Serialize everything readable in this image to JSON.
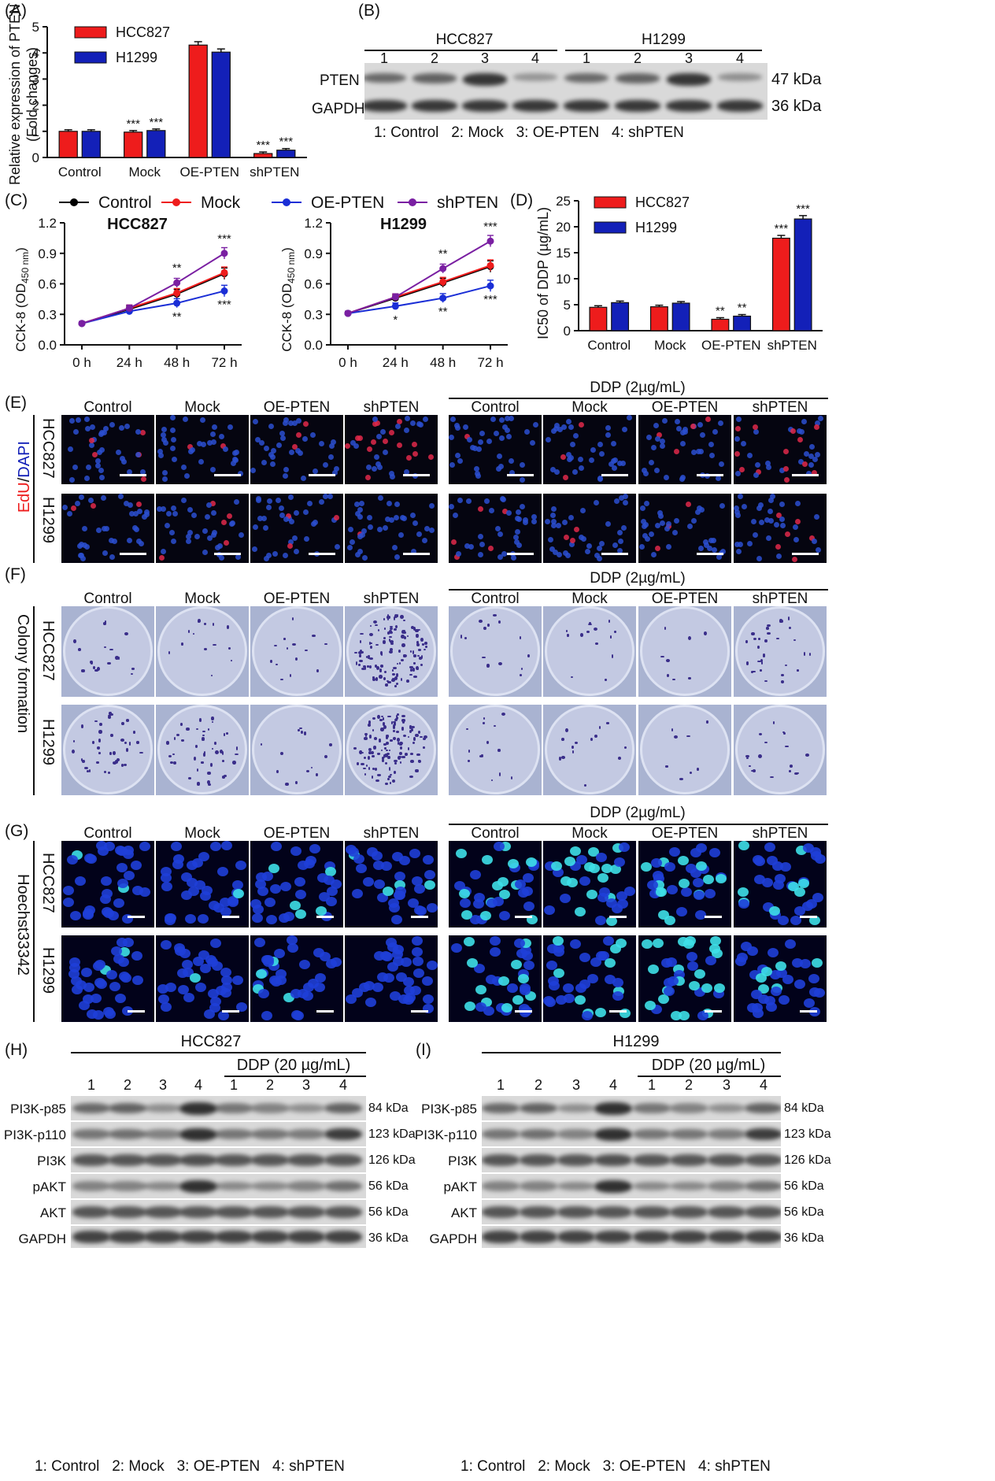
{
  "panels": {
    "A": "(A)",
    "B": "(B)",
    "C": "(C)",
    "D": "(D)",
    "E": "(E)",
    "F": "(F)",
    "G": "(G)",
    "H": "(H)",
    "I": "(I)"
  },
  "groups": [
    "Control",
    "Mock",
    "OE-PTEN",
    "shPTEN"
  ],
  "lines": [
    "HCC827",
    "H1299"
  ],
  "ddp_2": "DDP (2µg/mL)",
  "ddp_20": "DDP (20 µg/mL)",
  "lane_legend": [
    "1: Control",
    "2: Mock",
    "3: OE-PTEN",
    "4: shPTEN"
  ],
  "lane_numbers": [
    "1",
    "2",
    "3",
    "4"
  ],
  "colors": {
    "hcc827": "#ee1c1c",
    "h1299": "#1320b8",
    "control": "#000000",
    "mock": "#ee1c1c",
    "oe": "#1a2ed6",
    "sh": "#7a1fa2"
  },
  "panel_e_label": {
    "edu": "EdU",
    "slash": "/",
    "dapi": "DAPI"
  },
  "panel_f_label": "Colony formation",
  "panel_g_label": "Hoechst33342",
  "panel_b": {
    "proteins": [
      "PTEN",
      "GAPDH"
    ],
    "sizes": [
      "47 kDa",
      "36 kDa"
    ]
  },
  "panel_h": {
    "title": "HCC827",
    "proteins": [
      "PI3K-p85",
      "PI3K-p110",
      "PI3K",
      "pAKT",
      "AKT",
      "GAPDH"
    ],
    "sizes": [
      "84 kDa",
      "123 kDa",
      "126 kDa",
      "56 kDa",
      "56 kDa",
      "36 kDa"
    ]
  },
  "panel_i": {
    "title": "H1299",
    "proteins": [
      "PI3K-p85",
      "PI3K-p110",
      "PI3K",
      "pAKT",
      "AKT",
      "GAPDH"
    ],
    "sizes": [
      "84 kDa",
      "123 kDa",
      "126 kDa",
      "56 kDa",
      "56 kDa",
      "36 kDa"
    ]
  },
  "chart_data": [
    {
      "panel": "A",
      "type": "bar",
      "ylabel": "Relative expression of PTEN (Fold changes)",
      "ylim": [
        0,
        5
      ],
      "yticks": [
        "0",
        "1",
        "2",
        "3",
        "4",
        "5"
      ],
      "categories": [
        "Control",
        "Mock",
        "OE-PTEN",
        "shPTEN"
      ],
      "series": [
        {
          "name": "HCC827",
          "values": [
            1.0,
            0.97,
            4.3,
            0.15
          ]
        },
        {
          "name": "H1299",
          "values": [
            1.0,
            1.03,
            4.03,
            0.28
          ]
        }
      ],
      "annotations": [
        "",
        "",
        "***",
        "***",
        "",
        "",
        "***",
        "***"
      ]
    },
    {
      "panel": "C",
      "type": "line",
      "title": "HCC827",
      "ylabel": "CCK-8 (OD450 nm)",
      "ylabel_main": "CCK-8 (OD",
      "ylabel_sub": "450 nm",
      "ylabel_end": ")",
      "x": [
        "0 h",
        "24 h",
        "48 h",
        "72 h"
      ],
      "ylim": [
        0,
        1.2
      ],
      "yticks": [
        "0.0",
        "0.3",
        "0.6",
        "0.9",
        "1.2"
      ],
      "series": [
        {
          "name": "Control",
          "values": [
            0.21,
            0.35,
            0.5,
            0.7
          ]
        },
        {
          "name": "Mock",
          "values": [
            0.21,
            0.36,
            0.51,
            0.71
          ]
        },
        {
          "name": "OE-PTEN",
          "values": [
            0.21,
            0.33,
            0.41,
            0.53
          ]
        },
        {
          "name": "shPTEN",
          "values": [
            0.21,
            0.36,
            0.61,
            0.9
          ]
        }
      ],
      "annotations_top": [
        "",
        "",
        "**",
        "***"
      ],
      "annotations_bottom": [
        "",
        "",
        "**",
        "***"
      ]
    },
    {
      "panel": "C",
      "type": "line",
      "title": "H1299",
      "ylabel": "CCK-8 (OD450 nm)",
      "ylabel_main": "CCK-8 (OD",
      "ylabel_sub": "450 nm",
      "ylabel_end": ")",
      "x": [
        "0 h",
        "24 h",
        "48 h",
        "72 h"
      ],
      "ylim": [
        0,
        1.2
      ],
      "yticks": [
        "0.0",
        "0.3",
        "0.6",
        "0.9",
        "1.2"
      ],
      "series": [
        {
          "name": "Control",
          "values": [
            0.31,
            0.46,
            0.61,
            0.77
          ]
        },
        {
          "name": "Mock",
          "values": [
            0.31,
            0.47,
            0.62,
            0.78
          ]
        },
        {
          "name": "OE-PTEN",
          "values": [
            0.31,
            0.38,
            0.46,
            0.58
          ]
        },
        {
          "name": "shPTEN",
          "values": [
            0.31,
            0.47,
            0.75,
            1.02
          ]
        }
      ],
      "annotations_top": [
        "",
        "",
        "**",
        "***"
      ],
      "annotations_bottom": [
        "",
        "*",
        "**",
        "***"
      ]
    },
    {
      "panel": "D",
      "type": "bar",
      "ylabel": "IC50 of DDP (µg/mL)",
      "ylim": [
        0,
        25
      ],
      "yticks": [
        "0",
        "5",
        "10",
        "15",
        "20",
        "25"
      ],
      "categories": [
        "Control",
        "Mock",
        "OE-PTEN",
        "shPTEN"
      ],
      "series": [
        {
          "name": "HCC827",
          "values": [
            4.5,
            4.6,
            2.2,
            17.8
          ]
        },
        {
          "name": "H1299",
          "values": [
            5.4,
            5.3,
            2.8,
            21.5
          ]
        }
      ],
      "annotations": [
        "",
        "",
        "",
        "",
        "**",
        "**",
        "***",
        "***"
      ]
    }
  ]
}
